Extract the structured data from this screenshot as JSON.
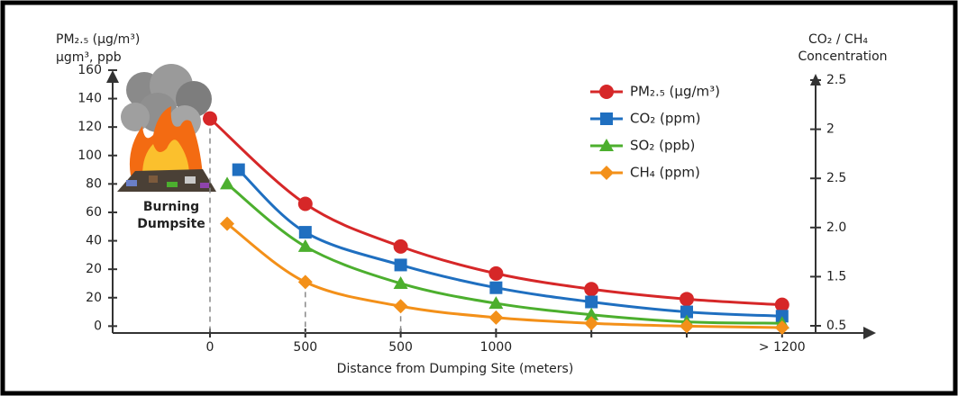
{
  "chart_data": {
    "type": "line",
    "y_label_lines": [
      "PM₂.₅ (μg/m³)",
      "μgm³, ppb"
    ],
    "y2_label_lines": [
      "CO₂ / CH₄",
      "Concentration"
    ],
    "x_label": "Distance from Dumping Site (meters)",
    "annotation": "Burning Dumpsite",
    "categories": [
      "0",
      "500",
      "500",
      "1000",
      null,
      null,
      "> 1200"
    ],
    "xlim": [
      -1,
      7
    ],
    "ylim": [
      -28,
      172
    ],
    "yticks": [
      {
        "value": -20,
        "label": "0"
      },
      {
        "value": 0,
        "label": "20"
      },
      20,
      40,
      60,
      80,
      100,
      120,
      140,
      160
    ],
    "y2lim": [
      -0.14,
      2.7
    ],
    "y2ticks": [
      {
        "value": 0,
        "label": "0.5"
      },
      {
        "value": 0.5,
        "label": "1.5"
      },
      {
        "value": 1,
        "label": "2.0"
      },
      {
        "value": 1.5,
        "label": "2.5"
      },
      2.0,
      2.5
    ],
    "legend": "top-right",
    "series": [
      {
        "name": "PM₂.₅ (μg/m³)",
        "color": "#d62728",
        "marker": "circle",
        "x": [
          0,
          1,
          2,
          3,
          4,
          5,
          6
        ],
        "values": [
          126,
          66,
          36,
          17,
          6,
          -1,
          -5
        ]
      },
      {
        "name": "CO₂ (ppm)",
        "color": "#1f6fc0",
        "marker": "square",
        "x": [
          0.3,
          1,
          2,
          3,
          4,
          5,
          6
        ],
        "values": [
          90,
          46,
          23,
          7,
          -3,
          -10,
          -13
        ]
      },
      {
        "name": "SO₂ (ppb)",
        "color": "#4caf2e",
        "marker": "triangle",
        "x": [
          0.18,
          1,
          2,
          3,
          4,
          5,
          6
        ],
        "values": [
          80,
          36,
          10,
          -4,
          -12,
          -17,
          -18
        ]
      },
      {
        "name": "CH₄ (ppm)",
        "color": "#f39019",
        "marker": "diamond",
        "x": [
          0.18,
          1,
          2,
          3,
          4,
          5,
          6
        ],
        "values": [
          52,
          11,
          -6,
          -14,
          -18,
          -20,
          -21
        ]
      }
    ]
  }
}
